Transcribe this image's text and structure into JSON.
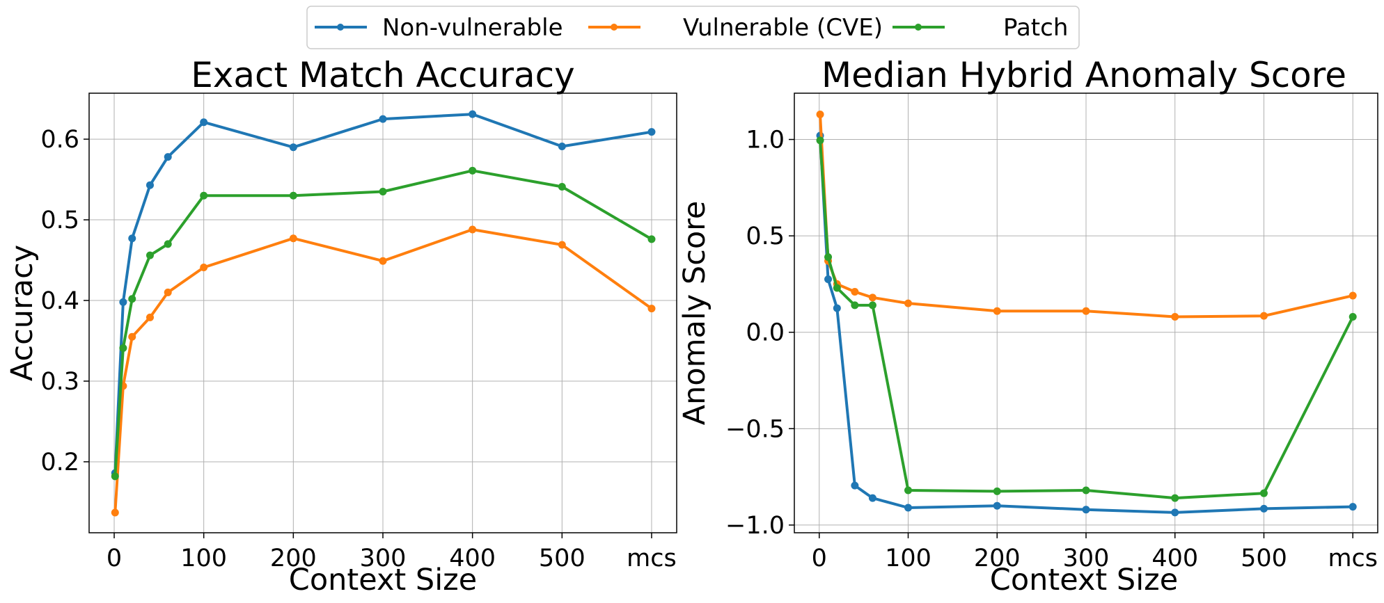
{
  "legend": [
    {
      "name": "Non-vulnerable",
      "color": "#1f77b4"
    },
    {
      "name": "Vulnerable (CVE)",
      "color": "#ff7f0e"
    },
    {
      "name": "Patch",
      "color": "#2ca02c"
    }
  ],
  "chart_data": [
    {
      "type": "line",
      "title": "Exact Match Accuracy",
      "xlabel": "Context Size",
      "ylabel": "Accuracy",
      "grid": true,
      "x": [
        1,
        10,
        20,
        40,
        60,
        100,
        200,
        300,
        400,
        500,
        600
      ],
      "x_ticks": [
        0,
        100,
        200,
        300,
        400,
        500,
        600
      ],
      "x_tick_labels": [
        "0",
        "100",
        "200",
        "300",
        "400",
        "500",
        "mcs"
      ],
      "xlim": [
        -28,
        628
      ],
      "ylim": [
        0.112,
        0.657
      ],
      "y_ticks": [
        0.2,
        0.3,
        0.4,
        0.5,
        0.6
      ],
      "y_tick_labels": [
        "0.2",
        "0.3",
        "0.4",
        "0.5",
        "0.6"
      ],
      "series": [
        {
          "name": "Non-vulnerable",
          "color": "#1f77b4",
          "values": [
            0.186,
            0.398,
            0.477,
            0.543,
            0.578,
            0.621,
            0.59,
            0.625,
            0.631,
            0.591,
            0.609
          ]
        },
        {
          "name": "Vulnerable (CVE)",
          "color": "#ff7f0e",
          "values": [
            0.137,
            0.294,
            0.355,
            0.379,
            0.41,
            0.441,
            0.477,
            0.449,
            0.488,
            0.469,
            0.39
          ]
        },
        {
          "name": "Patch",
          "color": "#2ca02c",
          "values": [
            0.182,
            0.341,
            0.402,
            0.456,
            0.47,
            0.53,
            0.53,
            0.535,
            0.561,
            0.541,
            0.476
          ]
        }
      ]
    },
    {
      "type": "line",
      "title": "Median Hybrid Anomaly Score",
      "xlabel": "Context Size",
      "ylabel": "Anomaly Score",
      "grid": true,
      "x": [
        1,
        10,
        20,
        40,
        60,
        100,
        200,
        300,
        400,
        500,
        600
      ],
      "x_ticks": [
        0,
        100,
        200,
        300,
        400,
        500,
        600
      ],
      "x_tick_labels": [
        "0",
        "100",
        "200",
        "300",
        "400",
        "500",
        "mcs"
      ],
      "xlim": [
        -28,
        628
      ],
      "ylim": [
        -1.04,
        1.24
      ],
      "y_ticks": [
        -1.0,
        -0.5,
        0.0,
        0.5,
        1.0
      ],
      "y_tick_labels": [
        "−1.0",
        "−0.5",
        "0.0",
        "0.5",
        "1.0"
      ],
      "series": [
        {
          "name": "Non-vulnerable",
          "color": "#1f77b4",
          "values": [
            1.02,
            0.275,
            0.125,
            -0.795,
            -0.86,
            -0.91,
            -0.9,
            -0.92,
            -0.935,
            -0.915,
            -0.905
          ]
        },
        {
          "name": "Vulnerable (CVE)",
          "color": "#ff7f0e",
          "values": [
            1.13,
            0.37,
            0.25,
            0.21,
            0.18,
            0.15,
            0.11,
            0.11,
            0.08,
            0.085,
            0.19
          ]
        },
        {
          "name": "Patch",
          "color": "#2ca02c",
          "values": [
            0.995,
            0.39,
            0.23,
            0.14,
            0.14,
            -0.82,
            -0.825,
            -0.82,
            -0.86,
            -0.835,
            0.08
          ]
        }
      ]
    }
  ]
}
